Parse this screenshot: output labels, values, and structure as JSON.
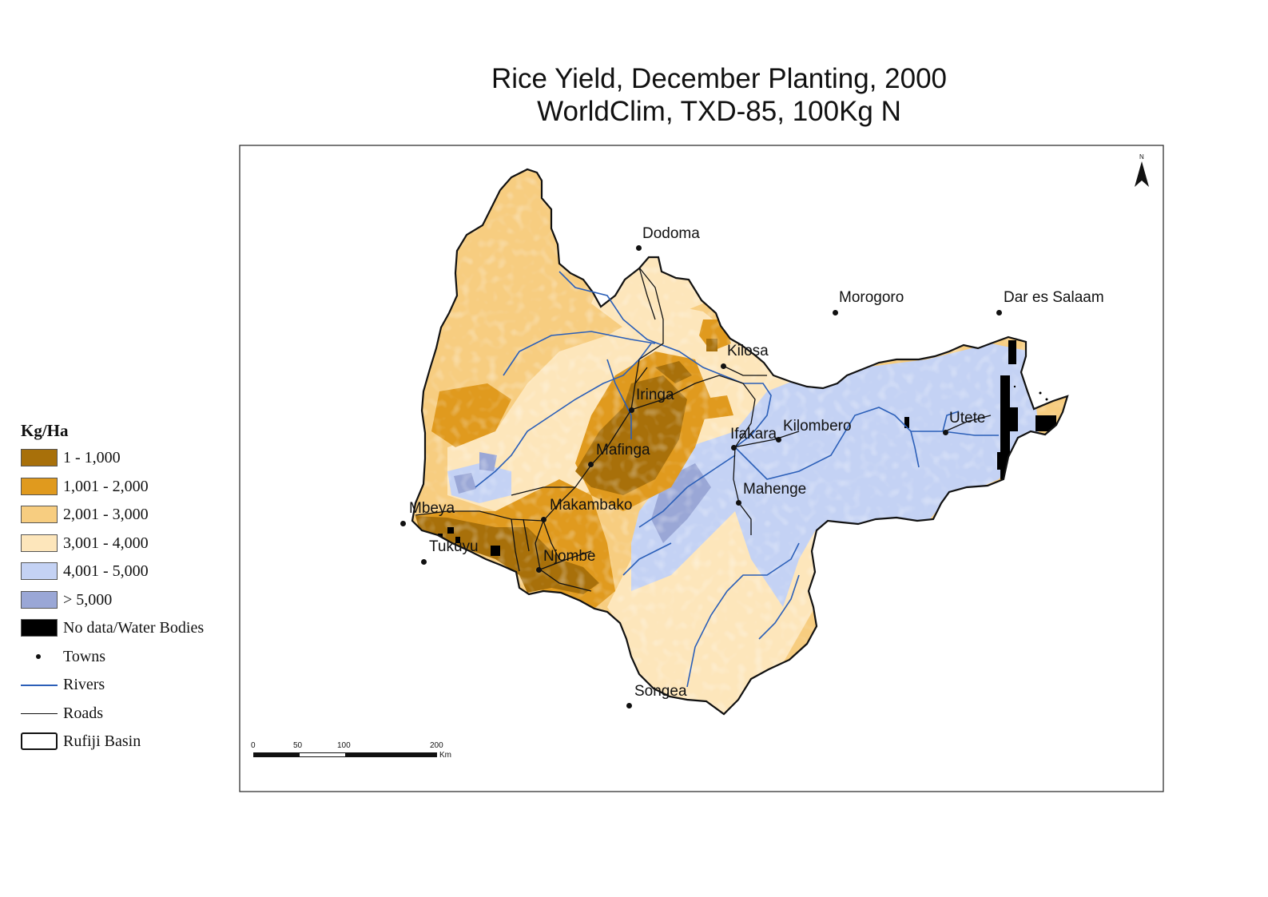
{
  "title": {
    "line1": "Rice Yield, December Planting, 2000",
    "line2": "WorldClim, TXD-85, 100Kg N"
  },
  "legend": {
    "title": "Kg/Ha",
    "items": [
      {
        "label": "1 - 1,000",
        "color": "#a8700a",
        "kind": "fill"
      },
      {
        "label": "1,001 - 2,000",
        "color": "#e09a1e",
        "kind": "fill"
      },
      {
        "label": "2,001 - 3,000",
        "color": "#f7cd80",
        "kind": "fill"
      },
      {
        "label": "3,001 - 4,000",
        "color": "#fde6bb",
        "kind": "fill"
      },
      {
        "label": "4,001 - 5,000",
        "color": "#c4d2f4",
        "kind": "fill"
      },
      {
        "label": "> 5,000",
        "color": "#9aa7d6",
        "kind": "fill"
      },
      {
        "label": "No data/Water Bodies",
        "color": "#000000",
        "kind": "fill"
      },
      {
        "label": "Towns",
        "color": "#111111",
        "kind": "dot"
      },
      {
        "label": "Rivers",
        "color": "#2b5fb8",
        "kind": "river"
      },
      {
        "label": "Roads",
        "color": "#111111",
        "kind": "road"
      },
      {
        "label": "Rufiji Basin",
        "color": "#111111",
        "kind": "basin"
      }
    ]
  },
  "towns": [
    {
      "name": "Dodoma"
    },
    {
      "name": "Morogoro"
    },
    {
      "name": "Dar es Salaam"
    },
    {
      "name": "Kilosa"
    },
    {
      "name": "Iringa"
    },
    {
      "name": "Ifakara"
    },
    {
      "name": "Kilombero"
    },
    {
      "name": "Utete"
    },
    {
      "name": "Mafinga"
    },
    {
      "name": "Mahenge"
    },
    {
      "name": "Mbeya"
    },
    {
      "name": "Makambako"
    },
    {
      "name": "Tukuyu"
    },
    {
      "name": "Njombe"
    },
    {
      "name": "Songea"
    }
  ],
  "scalebar": {
    "ticks": [
      "0",
      "50",
      "100",
      "200"
    ],
    "unit": "Km"
  },
  "north_arrow": {
    "label": "N"
  }
}
